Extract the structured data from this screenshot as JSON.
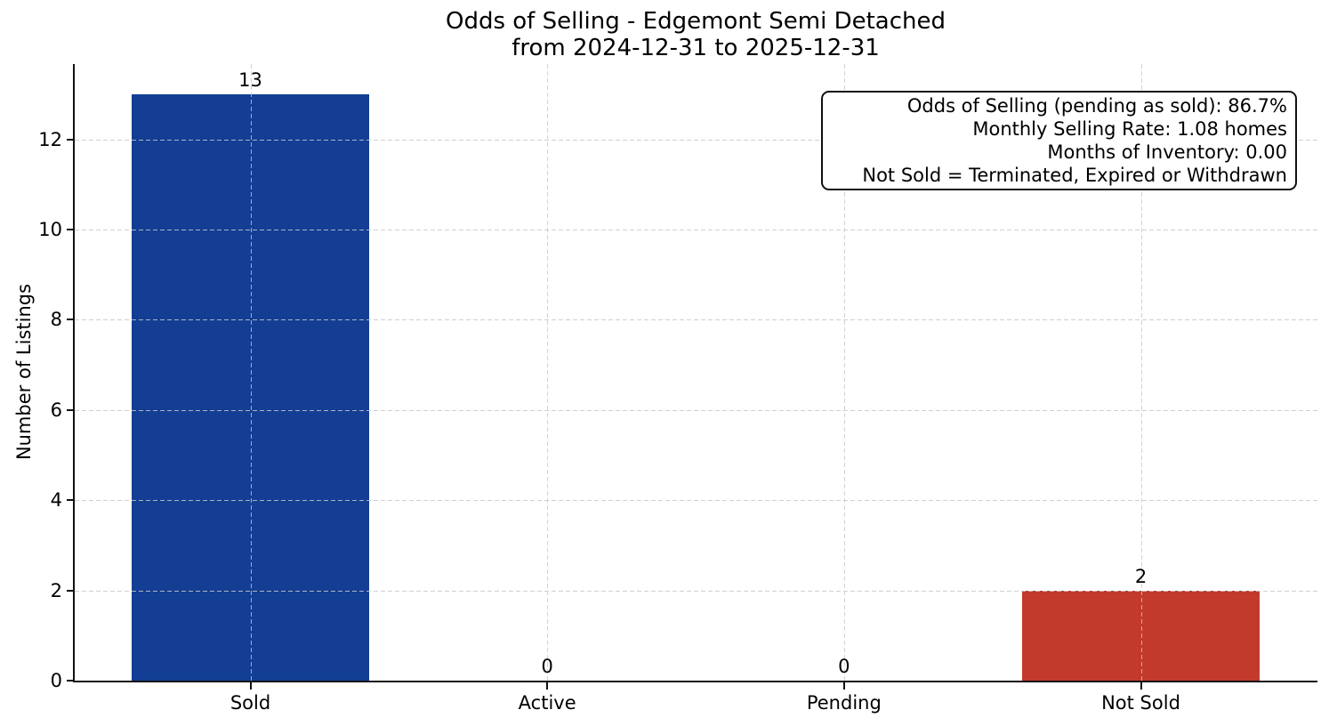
{
  "figure": {
    "background_color": "#ffffff",
    "text_color": "#000000",
    "grid_color": "#cccccc"
  },
  "chart_data": {
    "type": "bar",
    "title": "Odds of Selling - Edgemont Semi Detached\nfrom 2024-12-31 to 2025-12-31",
    "categories": [
      "Sold",
      "Active",
      "Pending",
      "Not Sold"
    ],
    "values": [
      13,
      0,
      0,
      2
    ],
    "bar_value_labels": [
      "13",
      "0",
      "0",
      "2"
    ],
    "bar_colors": [
      "#133e94",
      null,
      null,
      "#c23a2b"
    ],
    "xlabel": "",
    "ylabel": "Number of Listings",
    "ylim": [
      0,
      13.67
    ],
    "yticks": [
      0,
      2,
      4,
      6,
      8,
      10,
      12
    ],
    "grid": {
      "style": "dashed",
      "horizontal": true,
      "vertical": true
    },
    "legend": {
      "visible": false
    },
    "annotation": {
      "lines": [
        "Odds of Selling (pending as sold): 86.7%",
        "Monthly Selling Rate: 1.08 homes",
        "Months of Inventory: 0.00",
        "Not Sold = Terminated, Expired or Withdrawn"
      ]
    }
  }
}
